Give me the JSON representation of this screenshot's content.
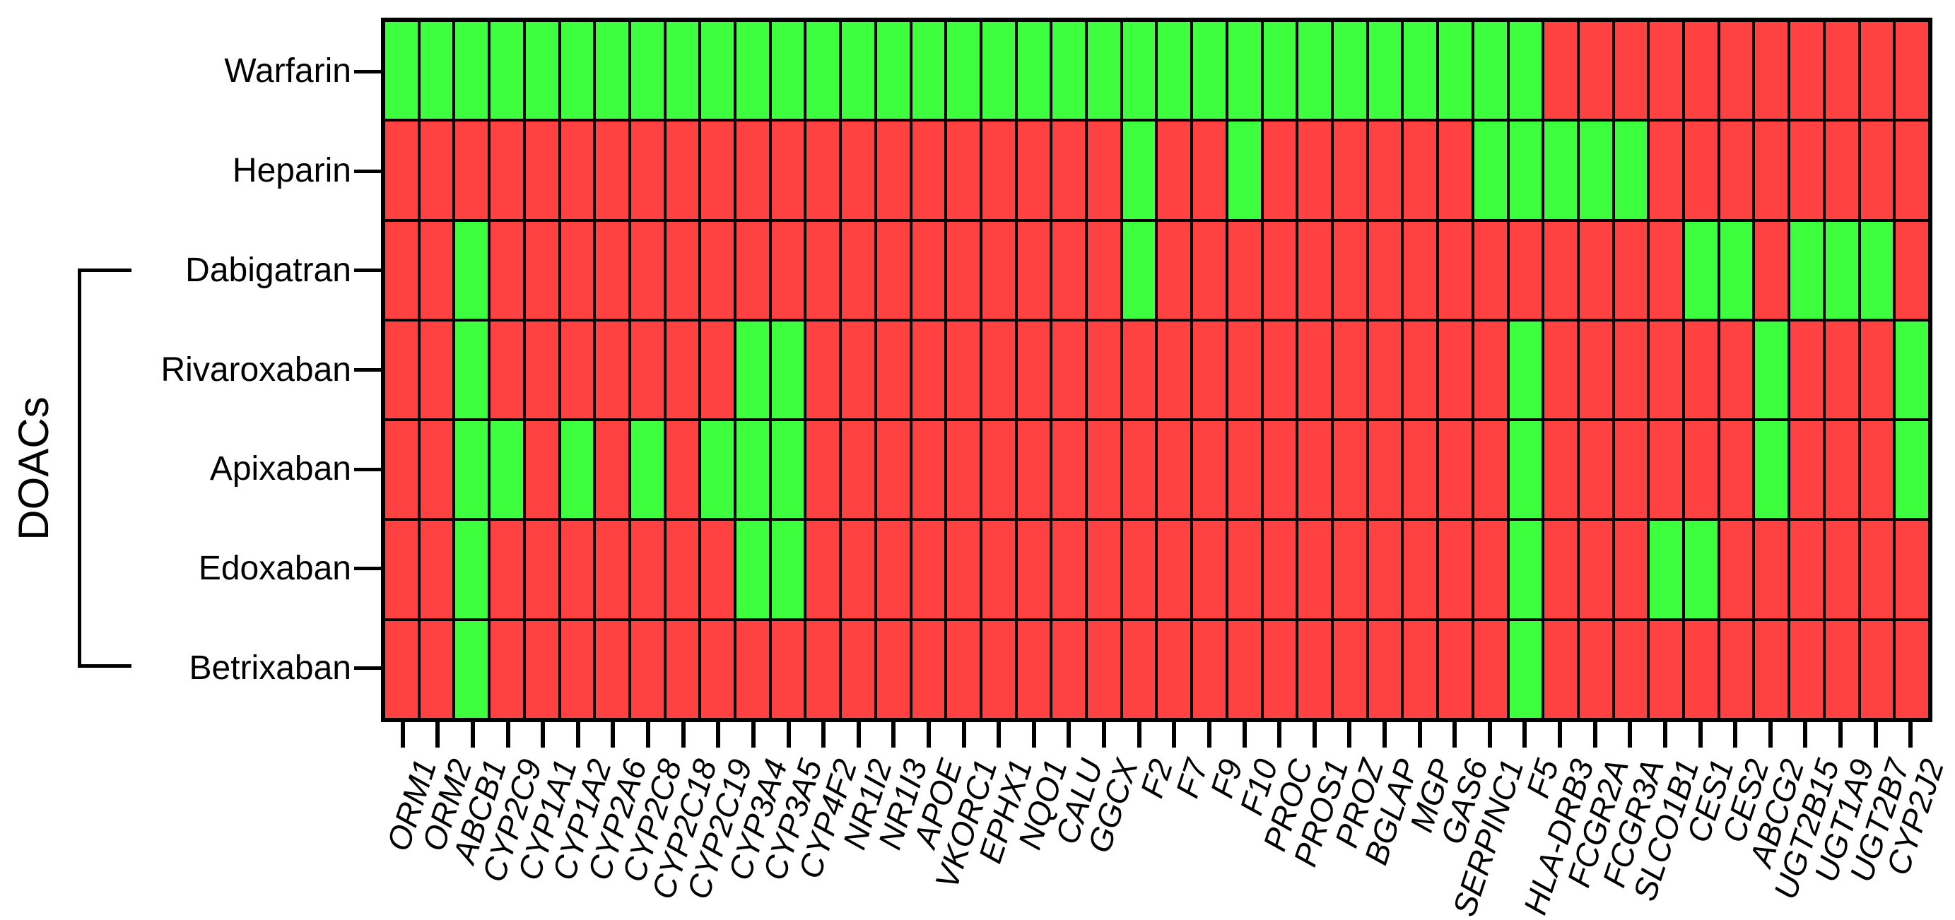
{
  "figure": {
    "group_label": "DOACs",
    "rows": [
      "Warfarin",
      "Heparin",
      "Dabigatran",
      "Rivaroxaban",
      "Apixaban",
      "Edoxaban",
      "Betrixaban"
    ],
    "doacs_group_rows": [
      "Dabigatran",
      "Rivaroxaban",
      "Apixaban",
      "Edoxaban",
      "Betrixaban"
    ],
    "columns": [
      "ORM1",
      "ORM2",
      "ABCB1",
      "CYP2C9",
      "CYP1A1",
      "CYP1A2",
      "CYP2A6",
      "CYP2C8",
      "CYP2C18",
      "CYP2C19",
      "CYP3A4",
      "CYP3A5",
      "CYP4F2",
      "NR1I2",
      "NR1I3",
      "APOE",
      "VKORC1",
      "EPHX1",
      "NQO1",
      "CALU",
      "GGCX",
      "F2",
      "F7",
      "F9",
      "F10",
      "PROC",
      "PROS1",
      "PROZ",
      "BGLAP",
      "MGP",
      "GAS6",
      "SERPINC1",
      "F5",
      "HLA-DRB3",
      "FCGR2A",
      "FCGR3A",
      "SLCO1B1",
      "CES1",
      "CES2",
      "ABCG2",
      "UGT2B15",
      "UGT1A9",
      "UGT2B7",
      "CYP2J2"
    ],
    "matrix": [
      [
        1,
        1,
        1,
        1,
        1,
        1,
        1,
        1,
        1,
        1,
        1,
        1,
        1,
        1,
        1,
        1,
        1,
        1,
        1,
        1,
        1,
        1,
        1,
        1,
        1,
        1,
        1,
        1,
        1,
        1,
        1,
        1,
        1,
        0,
        0,
        0,
        0,
        0,
        0,
        0,
        0,
        0,
        0,
        0
      ],
      [
        0,
        0,
        0,
        0,
        0,
        0,
        0,
        0,
        0,
        0,
        0,
        0,
        0,
        0,
        0,
        0,
        0,
        0,
        0,
        0,
        0,
        1,
        0,
        0,
        1,
        0,
        0,
        0,
        0,
        0,
        0,
        1,
        1,
        1,
        1,
        1,
        0,
        0,
        0,
        0,
        0,
        0,
        0,
        0
      ],
      [
        0,
        0,
        1,
        0,
        0,
        0,
        0,
        0,
        0,
        0,
        0,
        0,
        0,
        0,
        0,
        0,
        0,
        0,
        0,
        0,
        0,
        1,
        0,
        0,
        0,
        0,
        0,
        0,
        0,
        0,
        0,
        0,
        0,
        0,
        0,
        0,
        0,
        1,
        1,
        0,
        1,
        1,
        1,
        0
      ],
      [
        0,
        0,
        1,
        0,
        0,
        0,
        0,
        0,
        0,
        0,
        1,
        1,
        0,
        0,
        0,
        0,
        0,
        0,
        0,
        0,
        0,
        0,
        0,
        0,
        0,
        0,
        0,
        0,
        0,
        0,
        0,
        0,
        1,
        0,
        0,
        0,
        0,
        0,
        0,
        1,
        0,
        0,
        0,
        1
      ],
      [
        0,
        0,
        1,
        1,
        0,
        1,
        0,
        1,
        0,
        1,
        1,
        1,
        0,
        0,
        0,
        0,
        0,
        0,
        0,
        0,
        0,
        0,
        0,
        0,
        0,
        0,
        0,
        0,
        0,
        0,
        0,
        0,
        1,
        0,
        0,
        0,
        0,
        0,
        0,
        1,
        0,
        0,
        0,
        1
      ],
      [
        0,
        0,
        1,
        0,
        0,
        0,
        0,
        0,
        0,
        0,
        1,
        1,
        0,
        0,
        0,
        0,
        0,
        0,
        0,
        0,
        0,
        0,
        0,
        0,
        0,
        0,
        0,
        0,
        0,
        0,
        0,
        0,
        1,
        0,
        0,
        0,
        1,
        1,
        0,
        0,
        0,
        0,
        0,
        0
      ],
      [
        0,
        0,
        1,
        0,
        0,
        0,
        0,
        0,
        0,
        0,
        0,
        0,
        0,
        0,
        0,
        0,
        0,
        0,
        0,
        0,
        0,
        0,
        0,
        0,
        0,
        0,
        0,
        0,
        0,
        0,
        0,
        0,
        1,
        0,
        0,
        0,
        0,
        0,
        0,
        0,
        0,
        0,
        0,
        0
      ]
    ],
    "colors": {
      "green": "#3EFF3E",
      "red": "#FF4141",
      "grid_line": "#000000"
    }
  },
  "chart_data": {
    "type": "heatmap",
    "title": "",
    "x_categories": [
      "ORM1",
      "ORM2",
      "ABCB1",
      "CYP2C9",
      "CYP1A1",
      "CYP1A2",
      "CYP2A6",
      "CYP2C8",
      "CYP2C18",
      "CYP2C19",
      "CYP3A4",
      "CYP3A5",
      "CYP4F2",
      "NR1I2",
      "NR1I3",
      "APOE",
      "VKORC1",
      "EPHX1",
      "NQO1",
      "CALU",
      "GGCX",
      "F2",
      "F7",
      "F9",
      "F10",
      "PROC",
      "PROS1",
      "PROZ",
      "BGLAP",
      "MGP",
      "GAS6",
      "SERPINC1",
      "F5",
      "HLA-DRB3",
      "FCGR2A",
      "FCGR3A",
      "SLCO1B1",
      "CES1",
      "CES2",
      "ABCG2",
      "UGT2B15",
      "UGT1A9",
      "UGT2B7",
      "CYP2J2"
    ],
    "y_categories": [
      "Warfarin",
      "Heparin",
      "Dabigatran",
      "Rivaroxaban",
      "Apixaban",
      "Edoxaban",
      "Betrixaban"
    ],
    "y_group_annotation": {
      "label": "DOACs",
      "rows": [
        "Dabigatran",
        "Rivaroxaban",
        "Apixaban",
        "Edoxaban",
        "Betrixaban"
      ]
    },
    "values": [
      [
        1,
        1,
        1,
        1,
        1,
        1,
        1,
        1,
        1,
        1,
        1,
        1,
        1,
        1,
        1,
        1,
        1,
        1,
        1,
        1,
        1,
        1,
        1,
        1,
        1,
        1,
        1,
        1,
        1,
        1,
        1,
        1,
        1,
        0,
        0,
        0,
        0,
        0,
        0,
        0,
        0,
        0,
        0,
        0
      ],
      [
        0,
        0,
        0,
        0,
        0,
        0,
        0,
        0,
        0,
        0,
        0,
        0,
        0,
        0,
        0,
        0,
        0,
        0,
        0,
        0,
        0,
        1,
        0,
        0,
        1,
        0,
        0,
        0,
        0,
        0,
        0,
        1,
        1,
        1,
        1,
        1,
        0,
        0,
        0,
        0,
        0,
        0,
        0,
        0
      ],
      [
        0,
        0,
        1,
        0,
        0,
        0,
        0,
        0,
        0,
        0,
        0,
        0,
        0,
        0,
        0,
        0,
        0,
        0,
        0,
        0,
        0,
        1,
        0,
        0,
        0,
        0,
        0,
        0,
        0,
        0,
        0,
        0,
        0,
        0,
        0,
        0,
        0,
        1,
        1,
        0,
        1,
        1,
        1,
        0
      ],
      [
        0,
        0,
        1,
        0,
        0,
        0,
        0,
        0,
        0,
        0,
        1,
        1,
        0,
        0,
        0,
        0,
        0,
        0,
        0,
        0,
        0,
        0,
        0,
        0,
        0,
        0,
        0,
        0,
        0,
        0,
        0,
        0,
        1,
        0,
        0,
        0,
        0,
        0,
        0,
        1,
        0,
        0,
        0,
        1
      ],
      [
        0,
        0,
        1,
        1,
        0,
        1,
        0,
        1,
        0,
        1,
        1,
        1,
        0,
        0,
        0,
        0,
        0,
        0,
        0,
        0,
        0,
        0,
        0,
        0,
        0,
        0,
        0,
        0,
        0,
        0,
        0,
        0,
        1,
        0,
        0,
        0,
        0,
        0,
        0,
        1,
        0,
        0,
        0,
        1
      ],
      [
        0,
        0,
        1,
        0,
        0,
        0,
        0,
        0,
        0,
        0,
        1,
        1,
        0,
        0,
        0,
        0,
        0,
        0,
        0,
        0,
        0,
        0,
        0,
        0,
        0,
        0,
        0,
        0,
        0,
        0,
        0,
        0,
        1,
        0,
        0,
        0,
        1,
        1,
        0,
        0,
        0,
        0,
        0,
        0
      ],
      [
        0,
        0,
        1,
        0,
        0,
        0,
        0,
        0,
        0,
        0,
        0,
        0,
        0,
        0,
        0,
        0,
        0,
        0,
        0,
        0,
        0,
        0,
        0,
        0,
        0,
        0,
        0,
        0,
        0,
        0,
        0,
        0,
        1,
        0,
        0,
        0,
        0,
        0,
        0,
        0,
        0,
        0,
        0,
        0
      ]
    ],
    "cell_encoding": {
      "1": "green cell (#3EFF3E)",
      "0": "red cell (#FF4141)"
    },
    "legend_position": "none",
    "grid": "black cell borders",
    "x_tick_label_style": "italic, rotated ~72 degrees",
    "colors": {
      "green": "#3EFF3E",
      "red": "#FF4141"
    }
  }
}
